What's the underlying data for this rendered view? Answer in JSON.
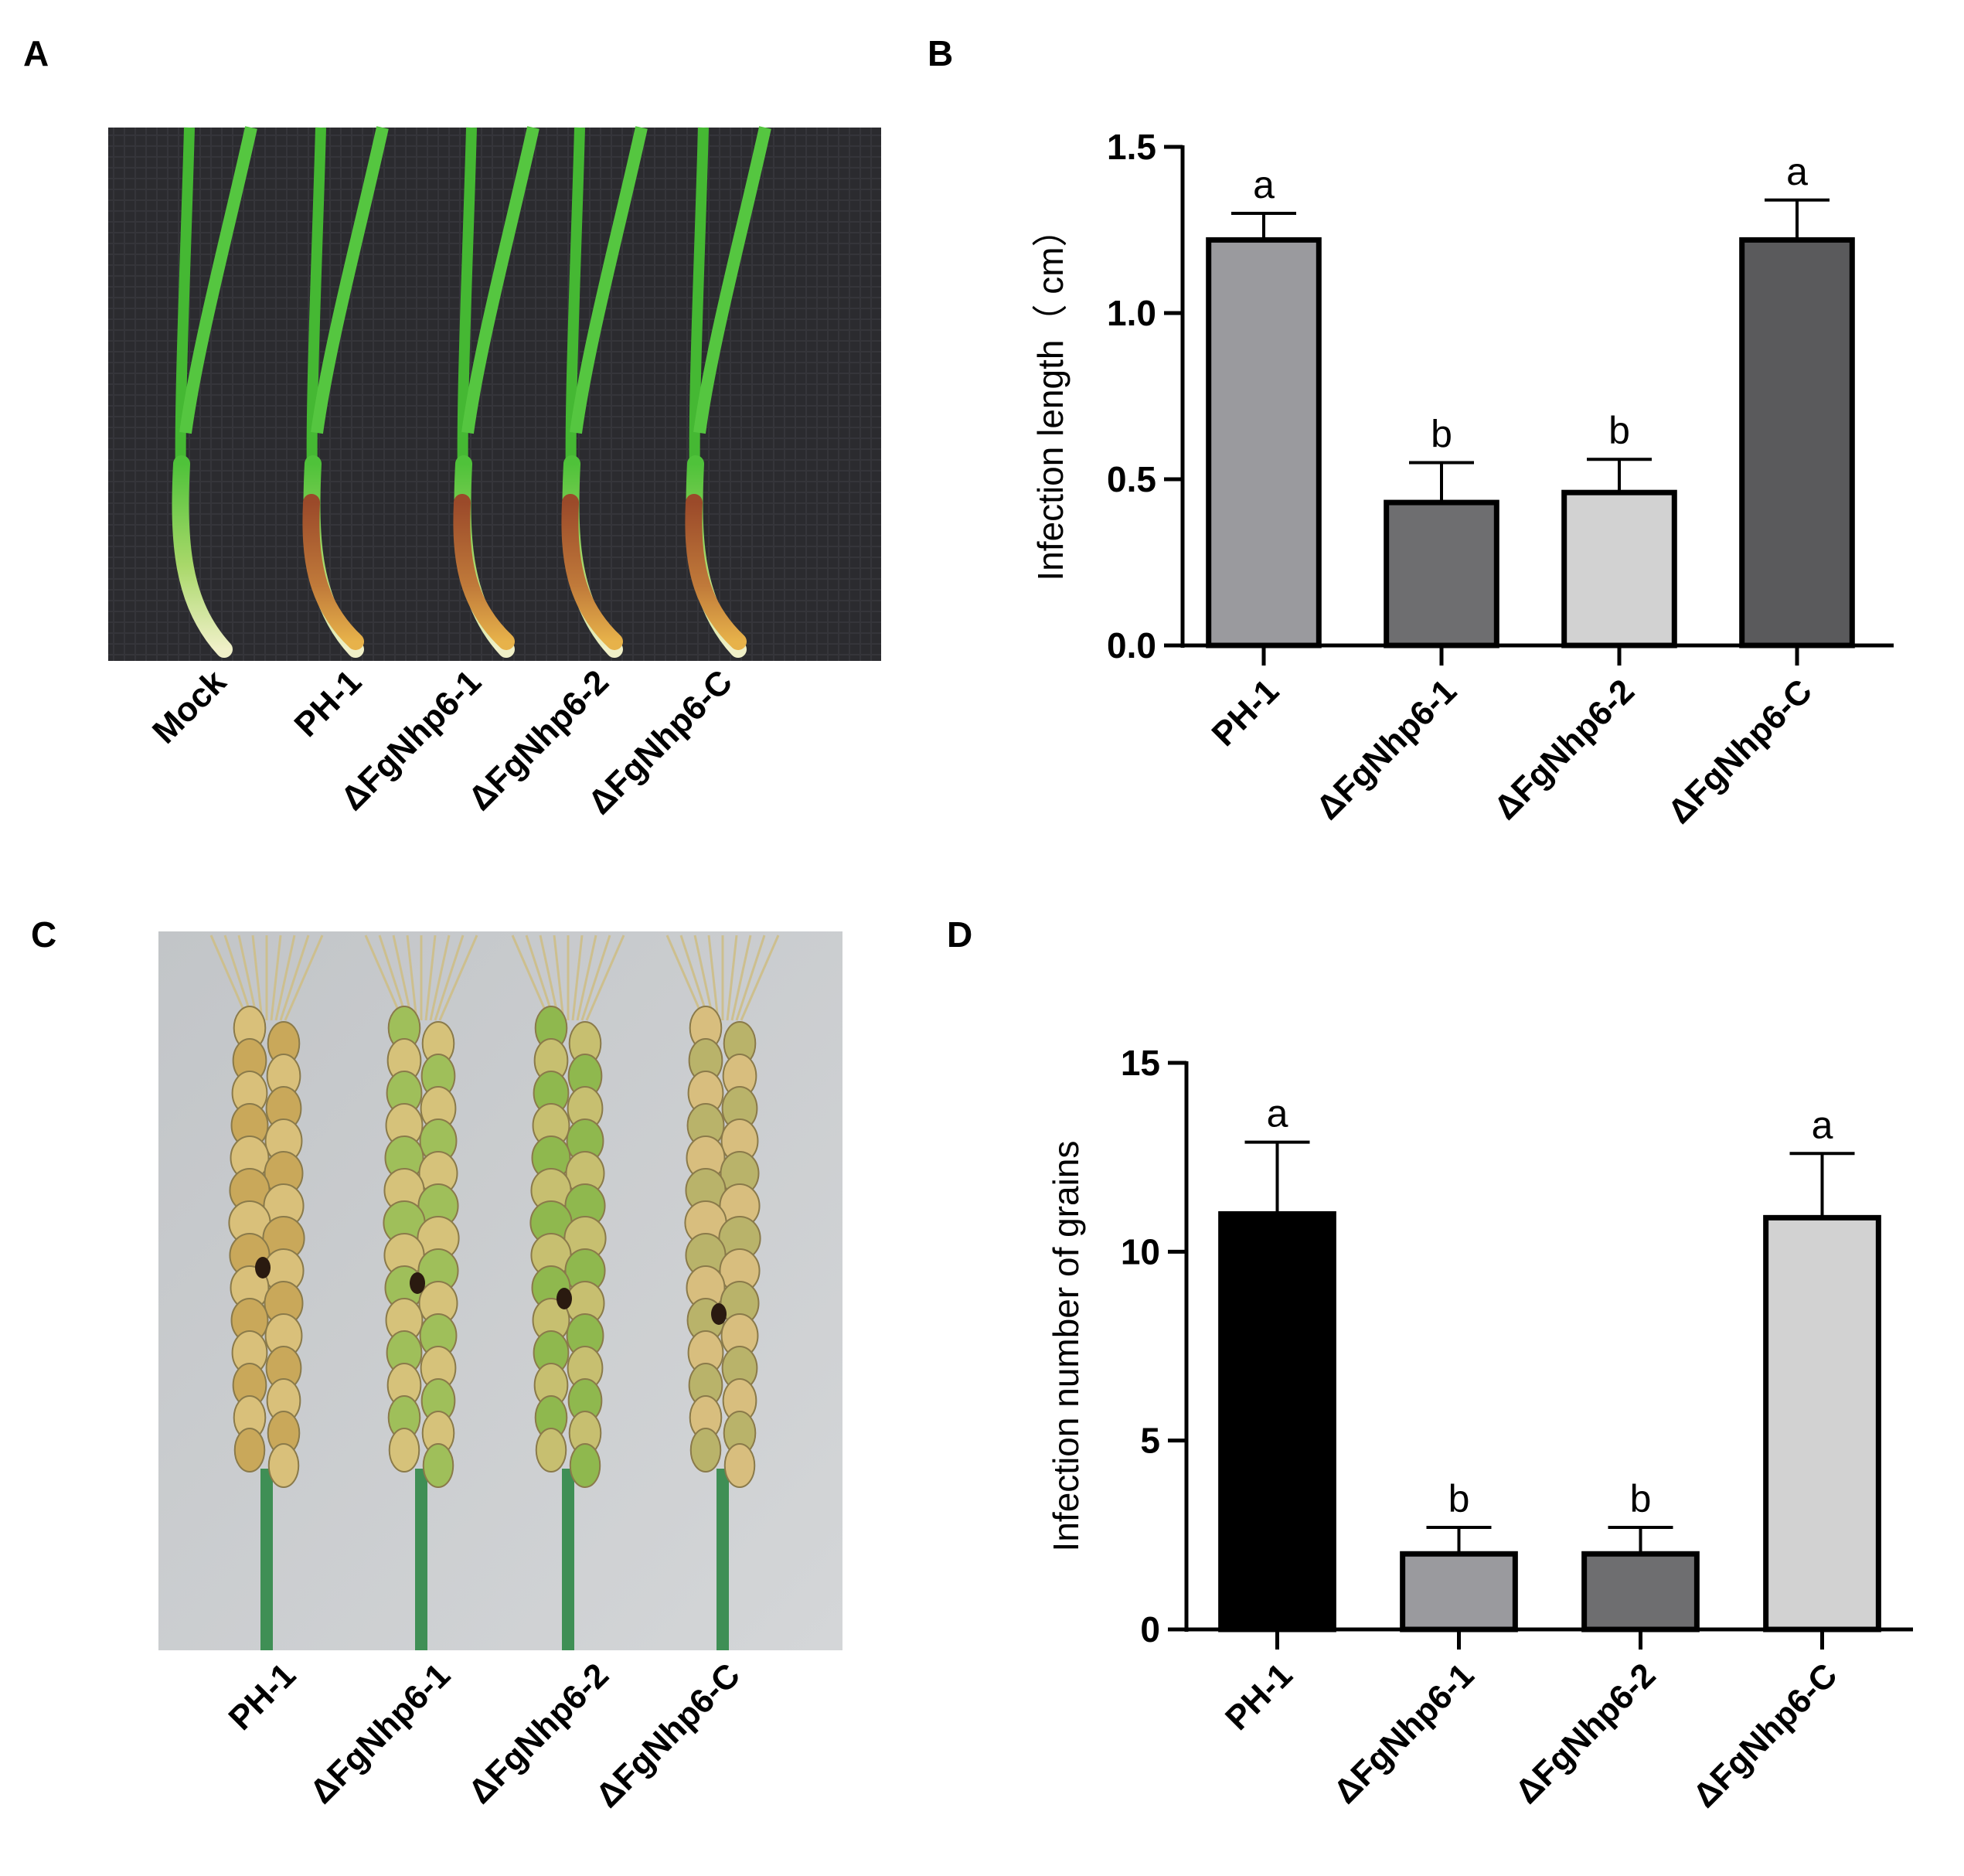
{
  "panels": {
    "a": "A",
    "b": "B",
    "c": "C",
    "d": "D"
  },
  "photo_a": {
    "labels": [
      "Mock",
      "PH-1",
      "ΔFgNhp6-1",
      "ΔFgNhp6-2",
      "ΔFgNhp6-C"
    ],
    "background": "#2b2b2f",
    "leaf_color": "#4fc23a"
  },
  "photo_c": {
    "labels": [
      "PH-1",
      "ΔFgNhp6-1",
      "ΔFgNhp6-2",
      "ΔFgNhp6-C"
    ],
    "background": "#c9ccce"
  },
  "chart_data": [
    {
      "type": "bar",
      "panel": "B",
      "categories": [
        "PH-1",
        "ΔFgNhp6-1",
        "ΔFgNhp6-2",
        "ΔFgNhp6-C"
      ],
      "values": [
        1.22,
        0.43,
        0.46,
        1.22
      ],
      "errors": [
        0.08,
        0.12,
        0.1,
        0.12
      ],
      "significance": [
        "a",
        "b",
        "b",
        "a"
      ],
      "bar_colors": [
        "#9a9a9e",
        "#6e6e70",
        "#d2d2d2",
        "#5a5a5c"
      ],
      "ylabel": "Infection length（ cm）",
      "ylim": [
        0,
        1.5
      ],
      "yticks": [
        0.0,
        0.5,
        1.0,
        1.5
      ],
      "ytick_labels": [
        "0.0",
        "0.5",
        "1.0",
        "1.5"
      ],
      "grid": false
    },
    {
      "type": "bar",
      "panel": "D",
      "categories": [
        "PH-1",
        "ΔFgNhp6-1",
        "ΔFgNhp6-2",
        "ΔFgNhp6-C"
      ],
      "values": [
        11.0,
        2.0,
        2.0,
        10.9
      ],
      "errors": [
        1.9,
        0.7,
        0.7,
        1.7
      ],
      "significance": [
        "a",
        "b",
        "b",
        "a"
      ],
      "bar_colors": [
        "#000000",
        "#9a9a9e",
        "#6e6e70",
        "#d2d2d2"
      ],
      "ylabel": "Infection number of grains",
      "ylim": [
        0,
        15
      ],
      "yticks": [
        0,
        5,
        10,
        15
      ],
      "ytick_labels": [
        "0",
        "5",
        "10",
        "15"
      ],
      "grid": false
    }
  ]
}
